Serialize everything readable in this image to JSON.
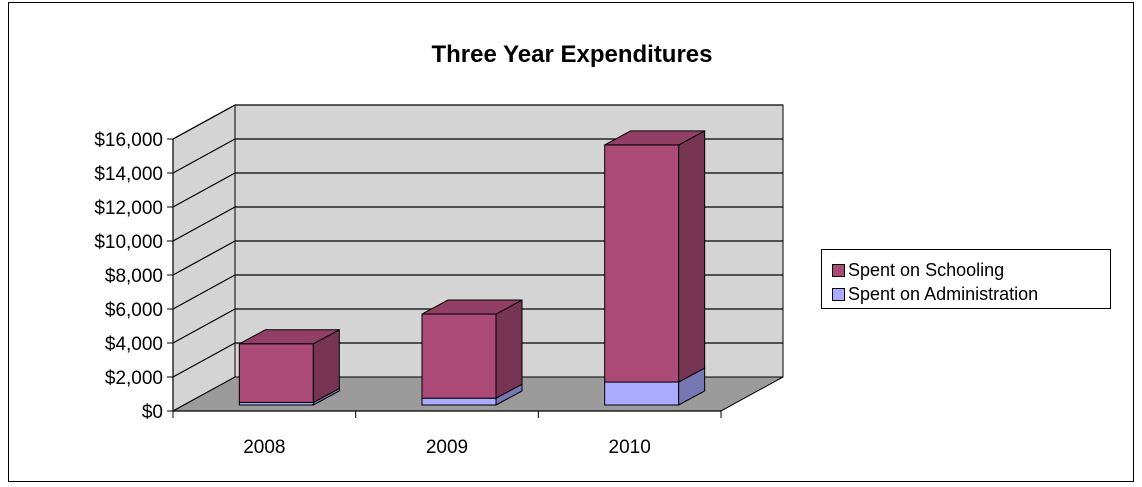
{
  "chart_data": {
    "type": "bar",
    "stacked": true,
    "three_d": true,
    "title": "Three Year Expenditures",
    "categories": [
      "2008",
      "2009",
      "2010"
    ],
    "series": [
      {
        "name": "Spent on Administration",
        "values": [
          150,
          400,
          1350
        ],
        "color": "#aaaaff"
      },
      {
        "name": "Spent on Schooling",
        "values": [
          3450,
          4950,
          13950
        ],
        "color": "#ab4a77"
      }
    ],
    "yticks": [
      "$0",
      "$2,000",
      "$4,000",
      "$6,000",
      "$8,000",
      "$10,000",
      "$12,000",
      "$14,000",
      "$16,000"
    ],
    "ylim": [
      0,
      16000
    ],
    "grid": true,
    "legend": "right",
    "wall_color": "#d4d4d4",
    "floor_color": "#9b9b9b"
  }
}
